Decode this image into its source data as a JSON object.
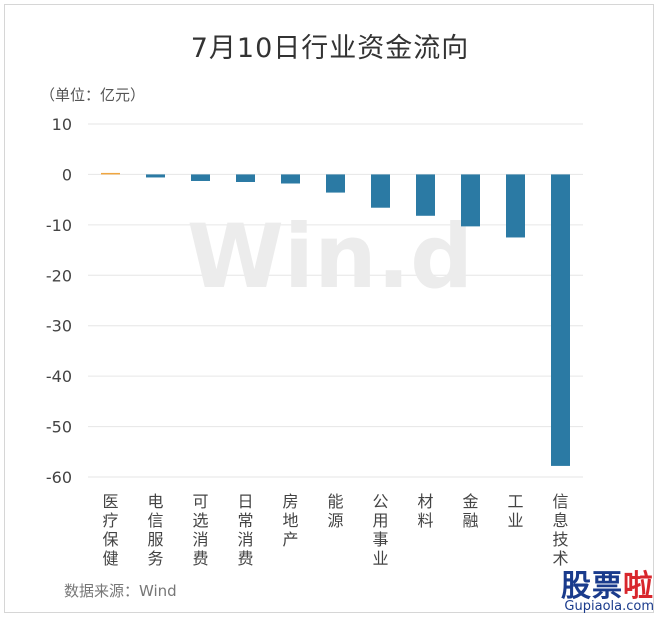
{
  "chart_data": {
    "type": "bar",
    "title": "7月10日行业资金流向",
    "unit_label": "（单位：亿元）",
    "categories": [
      "医疗保健",
      "电信服务",
      "可选消费",
      "日常消费",
      "房地产",
      "能源",
      "公用事业",
      "材料",
      "金融",
      "工业",
      "信息技术"
    ],
    "values": [
      0.3,
      -0.6,
      -1.3,
      -1.5,
      -1.8,
      -3.6,
      -6.6,
      -8.2,
      -10.3,
      -12.5,
      -57.8
    ],
    "ylim": [
      -60,
      10
    ],
    "yticks": [
      10,
      0,
      -10,
      -20,
      -30,
      -40,
      -50,
      -60
    ],
    "grid": true,
    "colors": {
      "negative": "#2b7aa4",
      "positive": "#f0a640"
    },
    "source": "数据来源：Wind",
    "watermark": "Win.d"
  },
  "logo": {
    "main": "股票",
    "accent": "啦",
    "site": "Gupiaola.com"
  }
}
